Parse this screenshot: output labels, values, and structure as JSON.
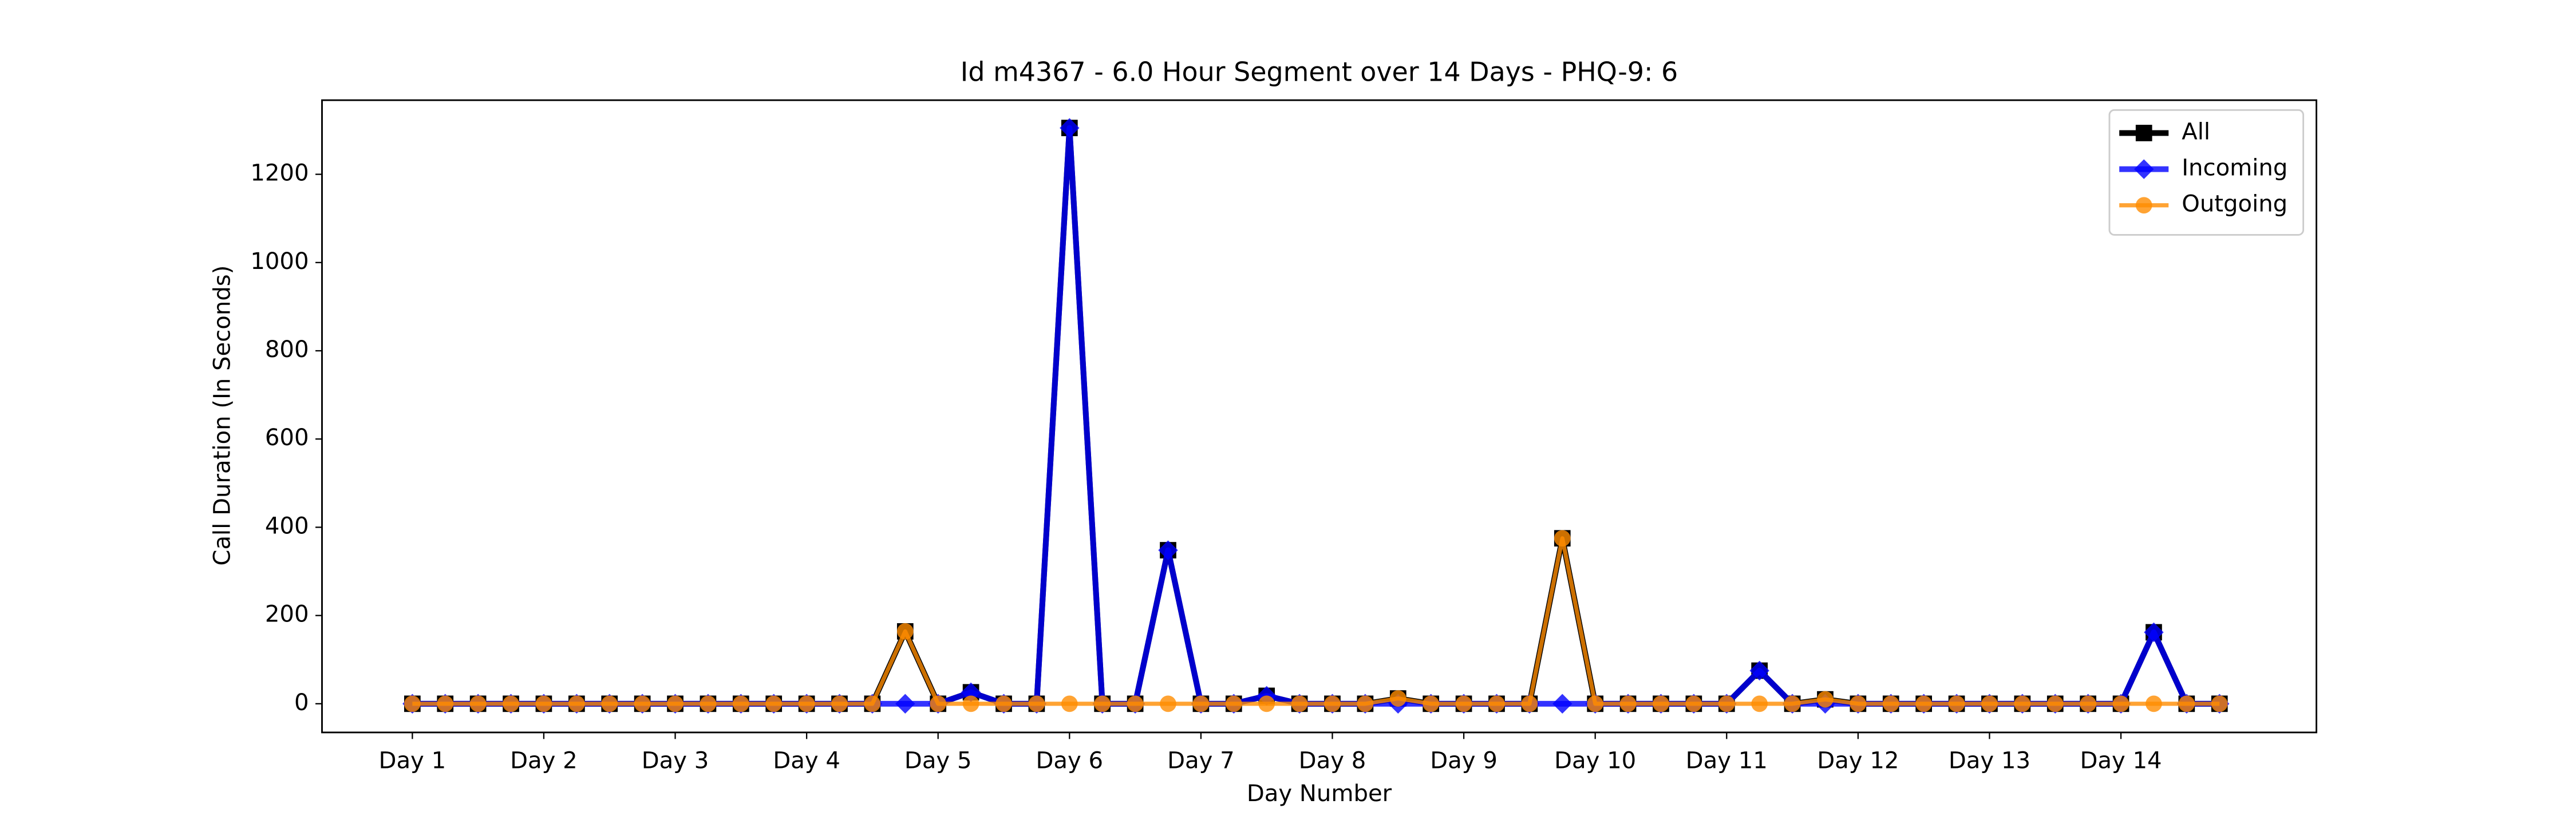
{
  "chart_data": {
    "type": "line",
    "title": "Id m4367 - 6.0 Hour Segment over 14 Days - PHQ-9: 6",
    "xlabel": "Day Number",
    "ylabel": "Call Duration (In Seconds)",
    "x": [
      0,
      1,
      2,
      3,
      4,
      5,
      6,
      7,
      8,
      9,
      10,
      11,
      12,
      13,
      14,
      15,
      16,
      17,
      18,
      19,
      20,
      21,
      22,
      23,
      24,
      25,
      26,
      27,
      28,
      29,
      30,
      31,
      32,
      33,
      34,
      35,
      36,
      37,
      38,
      39,
      40,
      41,
      42,
      43,
      44,
      45,
      46,
      47,
      48,
      49,
      50,
      51,
      52,
      53,
      54,
      55
    ],
    "series": [
      {
        "name": "All",
        "color": "#000000",
        "marker": "square",
        "values": [
          0,
          0,
          0,
          0,
          0,
          0,
          0,
          0,
          0,
          0,
          0,
          0,
          0,
          0,
          0,
          164,
          0,
          26,
          0,
          0,
          1305,
          0,
          0,
          348,
          0,
          0,
          18,
          0,
          0,
          0,
          12,
          0,
          0,
          0,
          0,
          375,
          0,
          0,
          0,
          0,
          0,
          75,
          0,
          10,
          0,
          0,
          0,
          0,
          0,
          0,
          0,
          0,
          0,
          162,
          0,
          0
        ]
      },
      {
        "name": "Incoming",
        "color": "#0000ff",
        "marker": "diamond",
        "values": [
          0,
          0,
          0,
          0,
          0,
          0,
          0,
          0,
          0,
          0,
          0,
          0,
          0,
          0,
          0,
          0,
          0,
          26,
          0,
          0,
          1305,
          0,
          0,
          348,
          0,
          0,
          18,
          0,
          0,
          0,
          0,
          0,
          0,
          0,
          0,
          0,
          0,
          0,
          0,
          0,
          0,
          75,
          0,
          0,
          0,
          0,
          0,
          0,
          0,
          0,
          0,
          0,
          0,
          162,
          0,
          0
        ]
      },
      {
        "name": "Outgoing",
        "color": "#ff8c00",
        "marker": "circle",
        "values": [
          0,
          0,
          0,
          0,
          0,
          0,
          0,
          0,
          0,
          0,
          0,
          0,
          0,
          0,
          0,
          164,
          0,
          0,
          0,
          0,
          0,
          0,
          0,
          0,
          0,
          0,
          0,
          0,
          0,
          0,
          12,
          0,
          0,
          0,
          0,
          375,
          0,
          0,
          0,
          0,
          0,
          0,
          0,
          10,
          0,
          0,
          0,
          0,
          0,
          0,
          0,
          0,
          0,
          0,
          0,
          0
        ]
      }
    ],
    "xlim": [
      -2.75,
      57.95
    ],
    "xticks": [
      {
        "value": 0,
        "label": "Day 1"
      },
      {
        "value": 4,
        "label": "Day 2"
      },
      {
        "value": 8,
        "label": "Day 3"
      },
      {
        "value": 12,
        "label": "Day 4"
      },
      {
        "value": 16,
        "label": "Day 5"
      },
      {
        "value": 20,
        "label": "Day 6"
      },
      {
        "value": 24,
        "label": "Day 7"
      },
      {
        "value": 28,
        "label": "Day 8"
      },
      {
        "value": 32,
        "label": "Day 9"
      },
      {
        "value": 36,
        "label": "Day 10"
      },
      {
        "value": 40,
        "label": "Day 11"
      },
      {
        "value": 44,
        "label": "Day 12"
      },
      {
        "value": 48,
        "label": "Day 13"
      },
      {
        "value": 52,
        "label": "Day 14"
      }
    ],
    "ylim": [
      -65,
      1368
    ],
    "yticks": [
      0,
      200,
      400,
      600,
      800,
      1000,
      1200
    ],
    "grid": false,
    "legend": "upper right"
  }
}
